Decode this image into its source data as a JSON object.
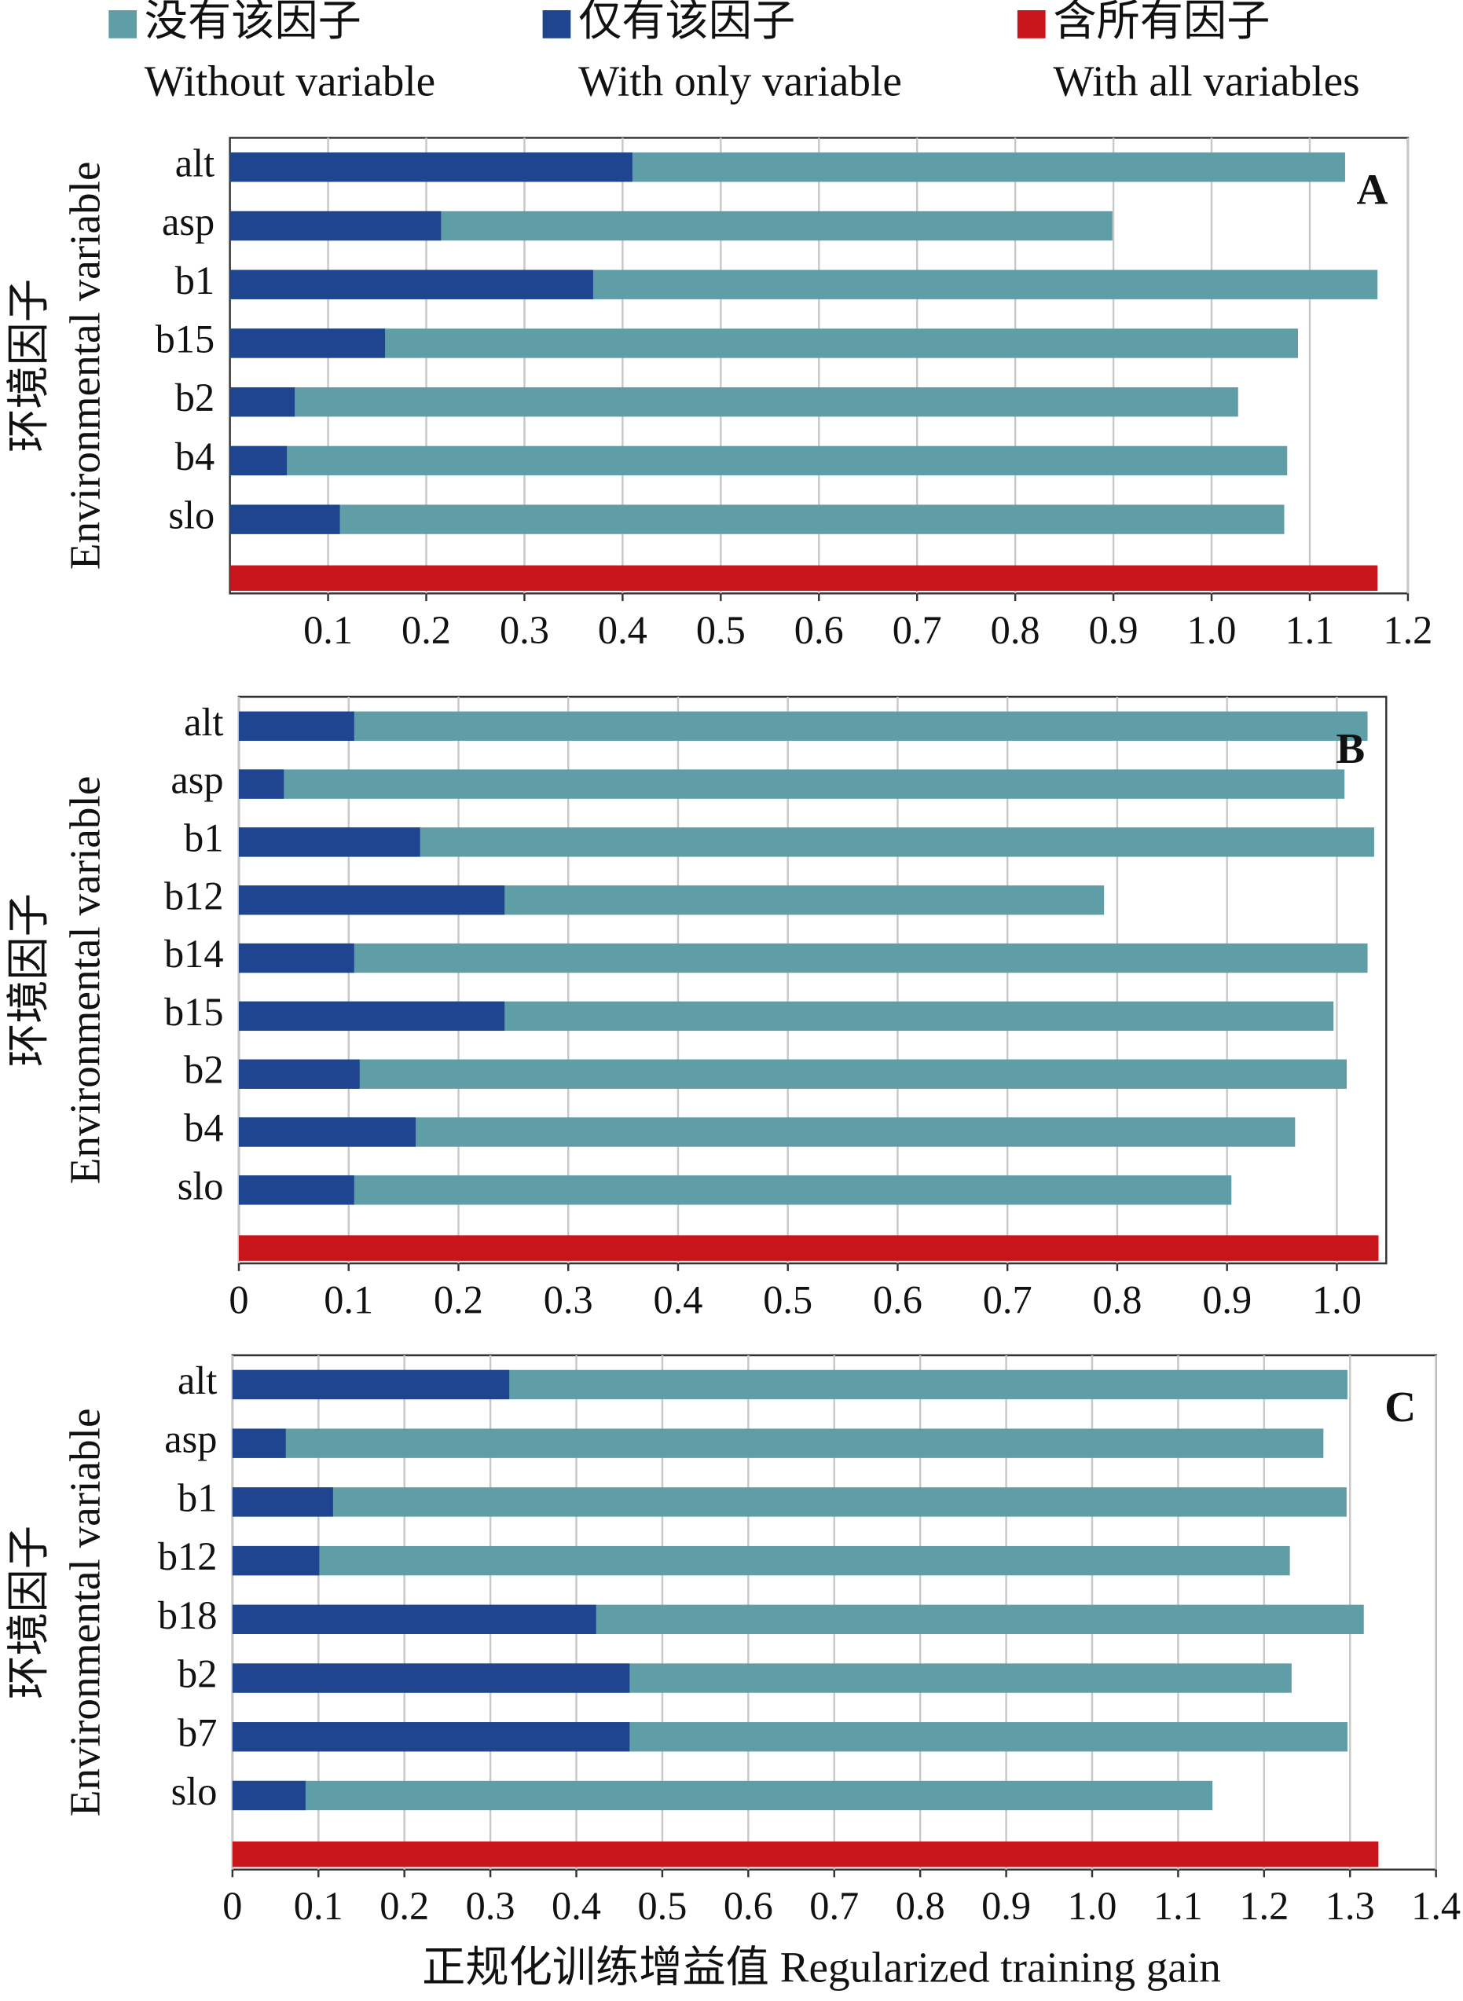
{
  "chart_data": [
    {
      "type": "bar",
      "panel_label": "A",
      "y_label_zh": "环境因子",
      "y_label_en": "Environmental variable",
      "categories": [
        "alt",
        "asp",
        "b1",
        "b15",
        "b2",
        "b4",
        "slo",
        null
      ],
      "series": [
        {
          "name": "Without variable",
          "name_zh": "没有该因子",
          "color": "#5f9ea6",
          "values": [
            1.136,
            0.899,
            1.169,
            1.088,
            1.027,
            1.077,
            1.074,
            null
          ]
        },
        {
          "name": "With only variable",
          "name_zh": "仅有该因子",
          "color": "#1f4591",
          "values": [
            0.41,
            0.215,
            0.37,
            0.158,
            0.066,
            0.058,
            0.112,
            null
          ]
        },
        {
          "name": "With all variables",
          "name_zh": "含所有因子",
          "color": "#c8151b",
          "values": [
            null,
            null,
            null,
            null,
            null,
            null,
            null,
            1.169
          ]
        }
      ],
      "xlim": [
        0,
        1.2
      ],
      "xticks": [
        0.1,
        0.2,
        0.3,
        0.4,
        0.5,
        0.6,
        0.7,
        0.8,
        0.9,
        {
          "value": 1.0,
          "label": "1.0"
        },
        1.1,
        1.2
      ],
      "grid": true
    },
    {
      "type": "bar",
      "panel_label": "B",
      "y_label_zh": "环境因子",
      "y_label_en": "Environmental variable",
      "categories": [
        "alt",
        "asp",
        "b1",
        "b12",
        "b14",
        "b15",
        "b2",
        "b4",
        "slo",
        null
      ],
      "series": [
        {
          "name": "Without variable",
          "name_zh": "没有该因子",
          "color": "#5f9ea6",
          "values": [
            1.028,
            1.007,
            1.034,
            0.788,
            1.028,
            0.997,
            1.009,
            0.962,
            0.904,
            null
          ]
        },
        {
          "name": "With only variable",
          "name_zh": "仅有该因子",
          "color": "#1f4591",
          "values": [
            0.105,
            0.041,
            0.165,
            0.242,
            0.105,
            0.242,
            0.11,
            0.161,
            0.105,
            null
          ]
        },
        {
          "name": "With all variables",
          "name_zh": "含所有因子",
          "color": "#c8151b",
          "values": [
            null,
            null,
            null,
            null,
            null,
            null,
            null,
            null,
            null,
            1.038
          ]
        }
      ],
      "xlim": [
        0,
        1.045
      ],
      "xticks": [
        0,
        0.1,
        0.2,
        0.3,
        0.4,
        0.5,
        0.6,
        0.7,
        0.8,
        0.9,
        {
          "value": 1.0,
          "label": "1.0"
        }
      ],
      "grid": true
    },
    {
      "type": "bar",
      "panel_label": "C",
      "y_label_zh": "环境因子",
      "y_label_en": "Environmental variable",
      "x_label": "正规化训练增益值 Regularized training gain",
      "categories": [
        "alt",
        "asp",
        "b1",
        "b12",
        "b18",
        "b2",
        "b7",
        "slo",
        null
      ],
      "series": [
        {
          "name": "Without variable",
          "name_zh": "没有该因子",
          "color": "#5f9ea6",
          "values": [
            1.297,
            1.269,
            1.296,
            1.23,
            1.316,
            1.232,
            1.297,
            1.14,
            null
          ]
        },
        {
          "name": "With only variable",
          "name_zh": "仅有该因子",
          "color": "#1f4591",
          "values": [
            0.322,
            0.062,
            0.117,
            0.101,
            0.423,
            0.462,
            0.462,
            0.085,
            null
          ]
        },
        {
          "name": "With all variables",
          "name_zh": "含所有因子",
          "color": "#c8151b",
          "values": [
            null,
            null,
            null,
            null,
            null,
            null,
            null,
            null,
            1.333
          ]
        }
      ],
      "xlim": [
        0,
        1.4
      ],
      "xticks": [
        0,
        0.1,
        0.2,
        0.3,
        0.4,
        0.5,
        0.6,
        0.7,
        0.8,
        0.9,
        {
          "value": 1.0,
          "label": "1.0"
        },
        1.1,
        1.2,
        1.3,
        1.4
      ],
      "grid": true
    }
  ]
}
